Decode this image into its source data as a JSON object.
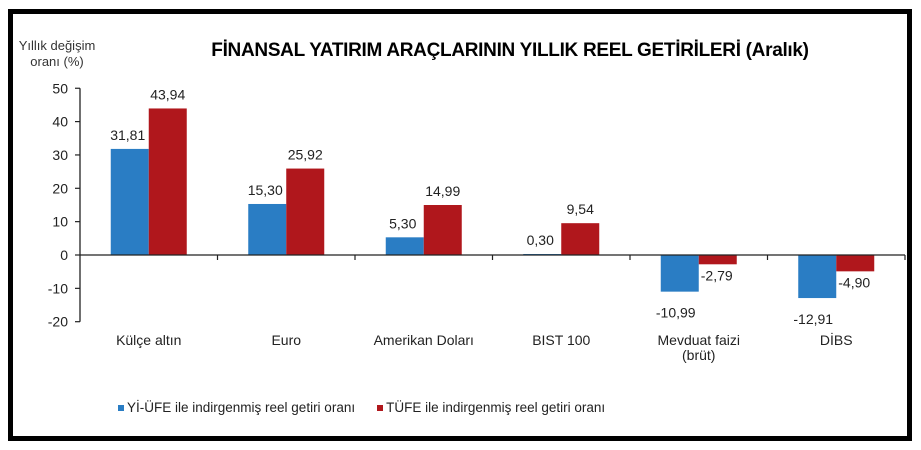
{
  "chart_data": {
    "type": "bar",
    "title": "FİNANSAL YATIRIM ARAÇLARININ YILLIK REEL GETİRİLERİ (Aralık)",
    "ylabel": "Yıllık değişim oranı (%)",
    "ylabel_lines": [
      "Yıllık değişim",
      "oranı (%)"
    ],
    "xlabel": "",
    "ylim": [
      -20,
      50
    ],
    "yticks": [
      50,
      40,
      30,
      20,
      10,
      0,
      -10,
      -20
    ],
    "grid": false,
    "legend_position": "bottom",
    "categories": [
      "Külçe altın",
      "Euro",
      "Amerikan Doları",
      "BIST 100",
      "Mevduat faizi (brüt)",
      "DİBS"
    ],
    "category_lines": [
      [
        "Külçe altın"
      ],
      [
        "Euro"
      ],
      [
        "Amerikan Doları"
      ],
      [
        "BIST 100"
      ],
      [
        "Mevduat faizi",
        "(brüt)"
      ],
      [
        "DİBS"
      ]
    ],
    "series": [
      {
        "name": "Yİ-ÜFE ile indirgenmiş reel getiri oranı",
        "color": "#2a7dc4",
        "values": [
          31.81,
          15.3,
          5.3,
          0.3,
          -10.99,
          -12.91
        ],
        "labels": [
          "31,81",
          "15,30",
          "5,30",
          "0,30",
          "-10,99",
          "-12,91"
        ]
      },
      {
        "name": "TÜFE ile indirgenmiş reel getiri oranı",
        "color": "#b0171c",
        "values": [
          43.94,
          25.92,
          14.99,
          9.54,
          -2.79,
          -4.9
        ],
        "labels": [
          "43,94",
          "25,92",
          "14,99",
          "9,54",
          "-2,79",
          "-4,90"
        ]
      }
    ]
  }
}
